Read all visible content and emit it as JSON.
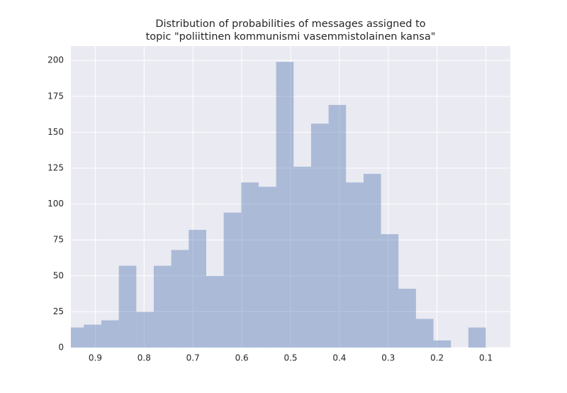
{
  "chart_data": {
    "type": "histogram",
    "title": [
      "Distribution of probabilities of messages assigned to",
      "topic \"poliittinen kommunismi vasemmistolainen kansa\""
    ],
    "bins": [
      0.1,
      0.1358,
      0.1716,
      0.2074,
      0.2432,
      0.279,
      0.3148,
      0.3506,
      0.3864,
      0.4222,
      0.458,
      0.4938,
      0.5296,
      0.5654,
      0.6012,
      0.637,
      0.6728,
      0.7086,
      0.7444,
      0.7802,
      0.816,
      0.8518,
      0.8876,
      0.9234,
      0.9592
    ],
    "counts": [
      14,
      0,
      5,
      20,
      41,
      79,
      121,
      115,
      169,
      156,
      126,
      199,
      112,
      115,
      94,
      50,
      82,
      68,
      57,
      25,
      57,
      19,
      16,
      14
    ],
    "color": "#4c72b0",
    "opacity": 0.4,
    "xlim": [
      0.95,
      0.05
    ],
    "xticks": [
      0.9,
      0.8,
      0.7,
      0.6,
      0.5,
      0.4,
      0.3,
      0.2,
      0.1
    ],
    "ylim": [
      0,
      210
    ],
    "yticks": [
      0,
      25,
      50,
      75,
      100,
      125,
      150,
      175,
      200
    ],
    "grid": true
  }
}
